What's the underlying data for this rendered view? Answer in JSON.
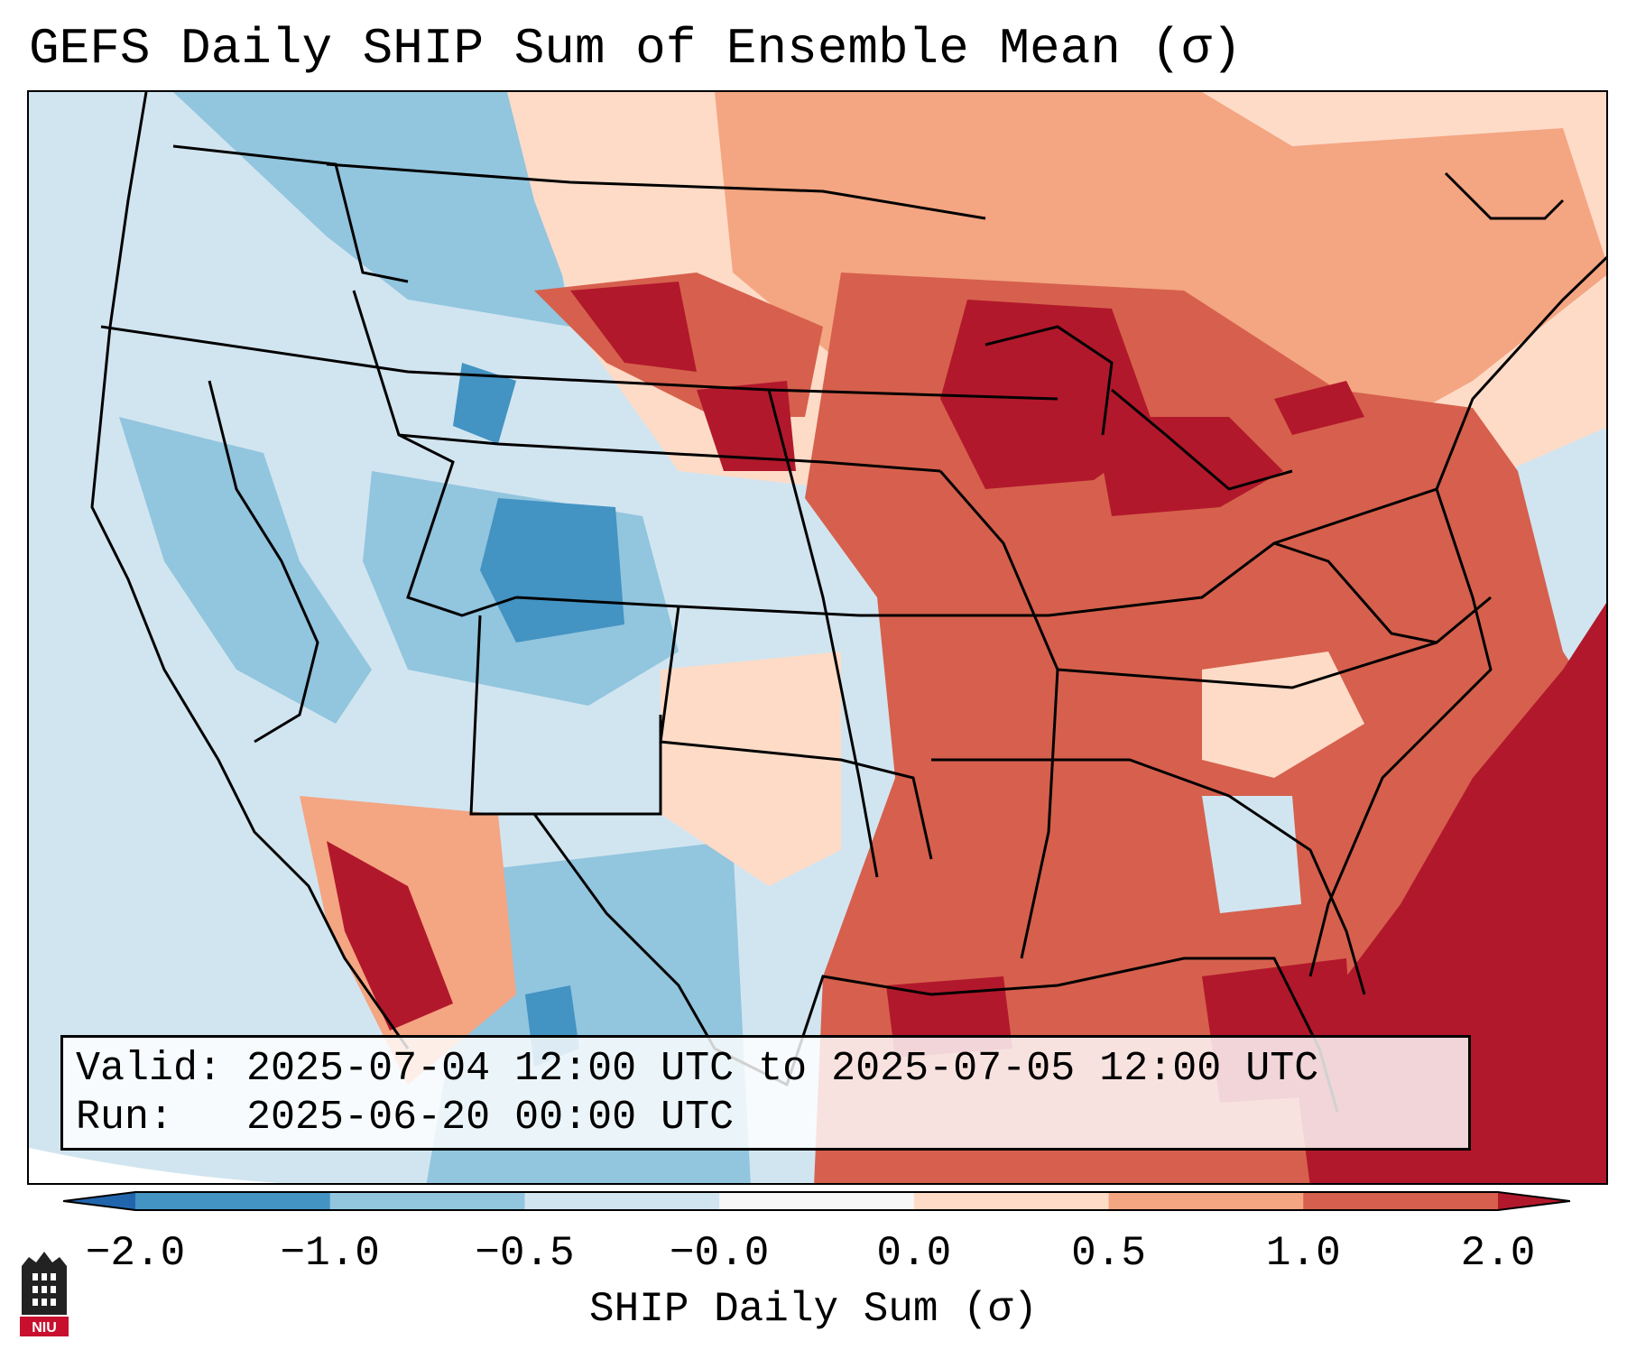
{
  "title": "GEFS Daily SHIP Sum of Ensemble Mean (σ)",
  "info": {
    "valid_label": "Valid:",
    "valid_value": "2025-07-04 12:00 UTC to 2025-07-05 12:00 UTC",
    "run_label": "Run:",
    "run_value": "2025-06-20 00:00 UTC"
  },
  "colorbar": {
    "label": "SHIP Daily Sum (σ)",
    "bins": [
      {
        "from": -2.0,
        "to": -1.0,
        "color": "#4393c3"
      },
      {
        "from": -1.0,
        "to": -0.5,
        "color": "#92c5de"
      },
      {
        "from": -0.5,
        "to": -0.0,
        "color": "#d1e5f0"
      },
      {
        "from": -0.0,
        "to": 0.0,
        "color": "#f7f7f7"
      },
      {
        "from": 0.0,
        "to": 0.5,
        "color": "#fddbc7"
      },
      {
        "from": 0.5,
        "to": 1.0,
        "color": "#f4a582"
      },
      {
        "from": 1.0,
        "to": 2.0,
        "color": "#d6604d"
      }
    ],
    "under_color": "#2166ac",
    "over_color": "#b2182b",
    "ticks": [
      "−2.0",
      "−1.0",
      "−0.5",
      "−0.0",
      "0.0",
      "0.5",
      "1.0",
      "2.0"
    ]
  },
  "map_colors": {
    "ocean_neutral": "#d1e5f0",
    "strong_negative": "#4393c3",
    "negative": "#92c5de",
    "weak_negative": "#d1e5f0",
    "weak_positive": "#fddbc7",
    "positive": "#f4a582",
    "strong_positive": "#d6604d",
    "extreme_positive": "#b2182b"
  },
  "logo": {
    "text": "NIU"
  }
}
